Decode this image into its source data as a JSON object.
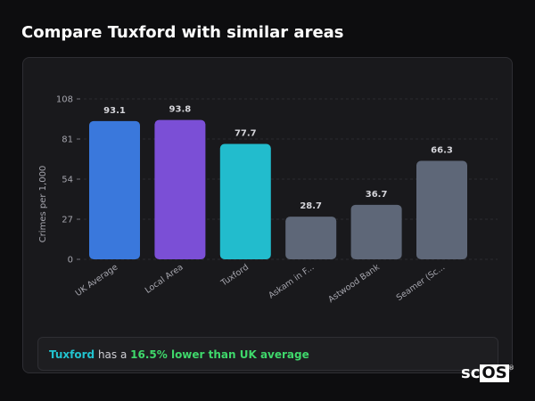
{
  "page": {
    "title": "Compare Tuxford with similar areas"
  },
  "summary": {
    "area_name": "Tuxford",
    "middle_text": " has a ",
    "difference_text": "16.5% lower than UK average"
  },
  "logo": {
    "prefix": "sc",
    "boxed": "OS",
    "registered": "®"
  },
  "chart_data": {
    "type": "bar",
    "ylabel": "Crimes per 1,000",
    "xlabel": "",
    "ylim": [
      0,
      108
    ],
    "yticks": [
      0,
      27,
      54,
      81,
      108
    ],
    "grid": true,
    "categories": [
      "UK Average",
      "Local Area",
      "Tuxford",
      "Askam in F...",
      "Astwood Bank",
      "Seamer (Sc..."
    ],
    "values": [
      93.1,
      93.8,
      77.7,
      28.7,
      36.7,
      66.3
    ],
    "value_labels": [
      "93.1",
      "93.8",
      "77.7",
      "28.7",
      "36.7",
      "66.3"
    ],
    "colors": [
      "#3a78dc",
      "#7b4fd6",
      "#22bccd",
      "#5e6778",
      "#5e6778",
      "#5e6778"
    ]
  }
}
